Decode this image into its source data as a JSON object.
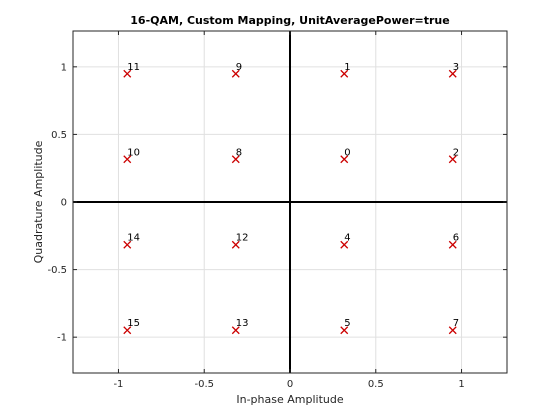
{
  "chart_data": {
    "type": "scatter",
    "title": "16-QAM, Custom Mapping, UnitAveragePower=true",
    "xlabel": "In-phase Amplitude",
    "ylabel": "Quadrature Amplitude",
    "xlim": [
      -1.265,
      1.265
    ],
    "ylim": [
      -1.265,
      1.265
    ],
    "xticks": [
      -1,
      -0.5,
      0,
      0.5,
      1
    ],
    "yticks": [
      -1,
      -0.5,
      0,
      0.5,
      1
    ],
    "xtick_labels": [
      "-1",
      "-0.5",
      "0",
      "0.5",
      "1"
    ],
    "ytick_labels": [
      "-1",
      "-0.5",
      "0",
      "0.5",
      "1"
    ],
    "grid": true,
    "marker": "x",
    "marker_color": "#cc0000",
    "points": [
      {
        "label": "0",
        "x": 0.3162,
        "y": 0.3162
      },
      {
        "label": "1",
        "x": 0.3162,
        "y": 0.9487
      },
      {
        "label": "2",
        "x": 0.9487,
        "y": 0.3162
      },
      {
        "label": "3",
        "x": 0.9487,
        "y": 0.9487
      },
      {
        "label": "4",
        "x": 0.3162,
        "y": -0.3162
      },
      {
        "label": "5",
        "x": 0.3162,
        "y": -0.9487
      },
      {
        "label": "6",
        "x": 0.9487,
        "y": -0.3162
      },
      {
        "label": "7",
        "x": 0.9487,
        "y": -0.9487
      },
      {
        "label": "8",
        "x": -0.3162,
        "y": 0.3162
      },
      {
        "label": "9",
        "x": -0.3162,
        "y": 0.9487
      },
      {
        "label": "10",
        "x": -0.9487,
        "y": 0.3162
      },
      {
        "label": "11",
        "x": -0.9487,
        "y": 0.9487
      },
      {
        "label": "12",
        "x": -0.3162,
        "y": -0.3162
      },
      {
        "label": "13",
        "x": -0.3162,
        "y": -0.9487
      },
      {
        "label": "14",
        "x": -0.9487,
        "y": -0.3162
      },
      {
        "label": "15",
        "x": -0.9487,
        "y": -0.9487
      }
    ]
  }
}
